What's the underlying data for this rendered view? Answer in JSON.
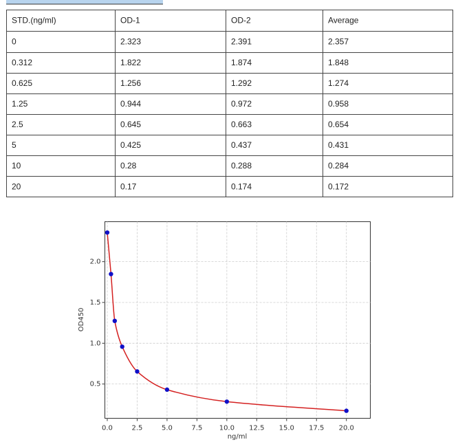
{
  "table": {
    "header": [
      "STD.(ng/ml)",
      "OD-1",
      "OD-2",
      "Average"
    ],
    "rows": [
      [
        0,
        2.323,
        2.391,
        2.357
      ],
      [
        0.312,
        1.822,
        1.874,
        1.848
      ],
      [
        0.625,
        1.256,
        1.292,
        1.274
      ],
      [
        1.25,
        0.944,
        0.972,
        0.958
      ],
      [
        2.5,
        0.645,
        0.663,
        0.654
      ],
      [
        5,
        0.425,
        0.437,
        0.431
      ],
      [
        10,
        0.28,
        0.288,
        0.284
      ],
      [
        20,
        0.17,
        0.174,
        0.172
      ]
    ]
  },
  "chart_data": {
    "type": "scatter",
    "xlabel": "ng/ml",
    "ylabel": "OD450",
    "xlim": [
      -0.2,
      22
    ],
    "ylim": [
      0.08,
      2.49
    ],
    "xticks": [
      {
        "value": 0,
        "label": "0.0"
      },
      2.5,
      {
        "value": 5,
        "label": "5.0"
      },
      7.5,
      {
        "value": 10,
        "label": "10.0"
      },
      12.5,
      {
        "value": 15,
        "label": "15.0"
      },
      17.5,
      {
        "value": 20,
        "label": "20.0"
      }
    ],
    "yticks": [
      0.5,
      {
        "value": 1,
        "label": "1.0"
      },
      1.5,
      {
        "value": 2,
        "label": "2.0"
      }
    ],
    "grid": true,
    "point_color": "#1010c8",
    "line_color": "#d42020"
  }
}
